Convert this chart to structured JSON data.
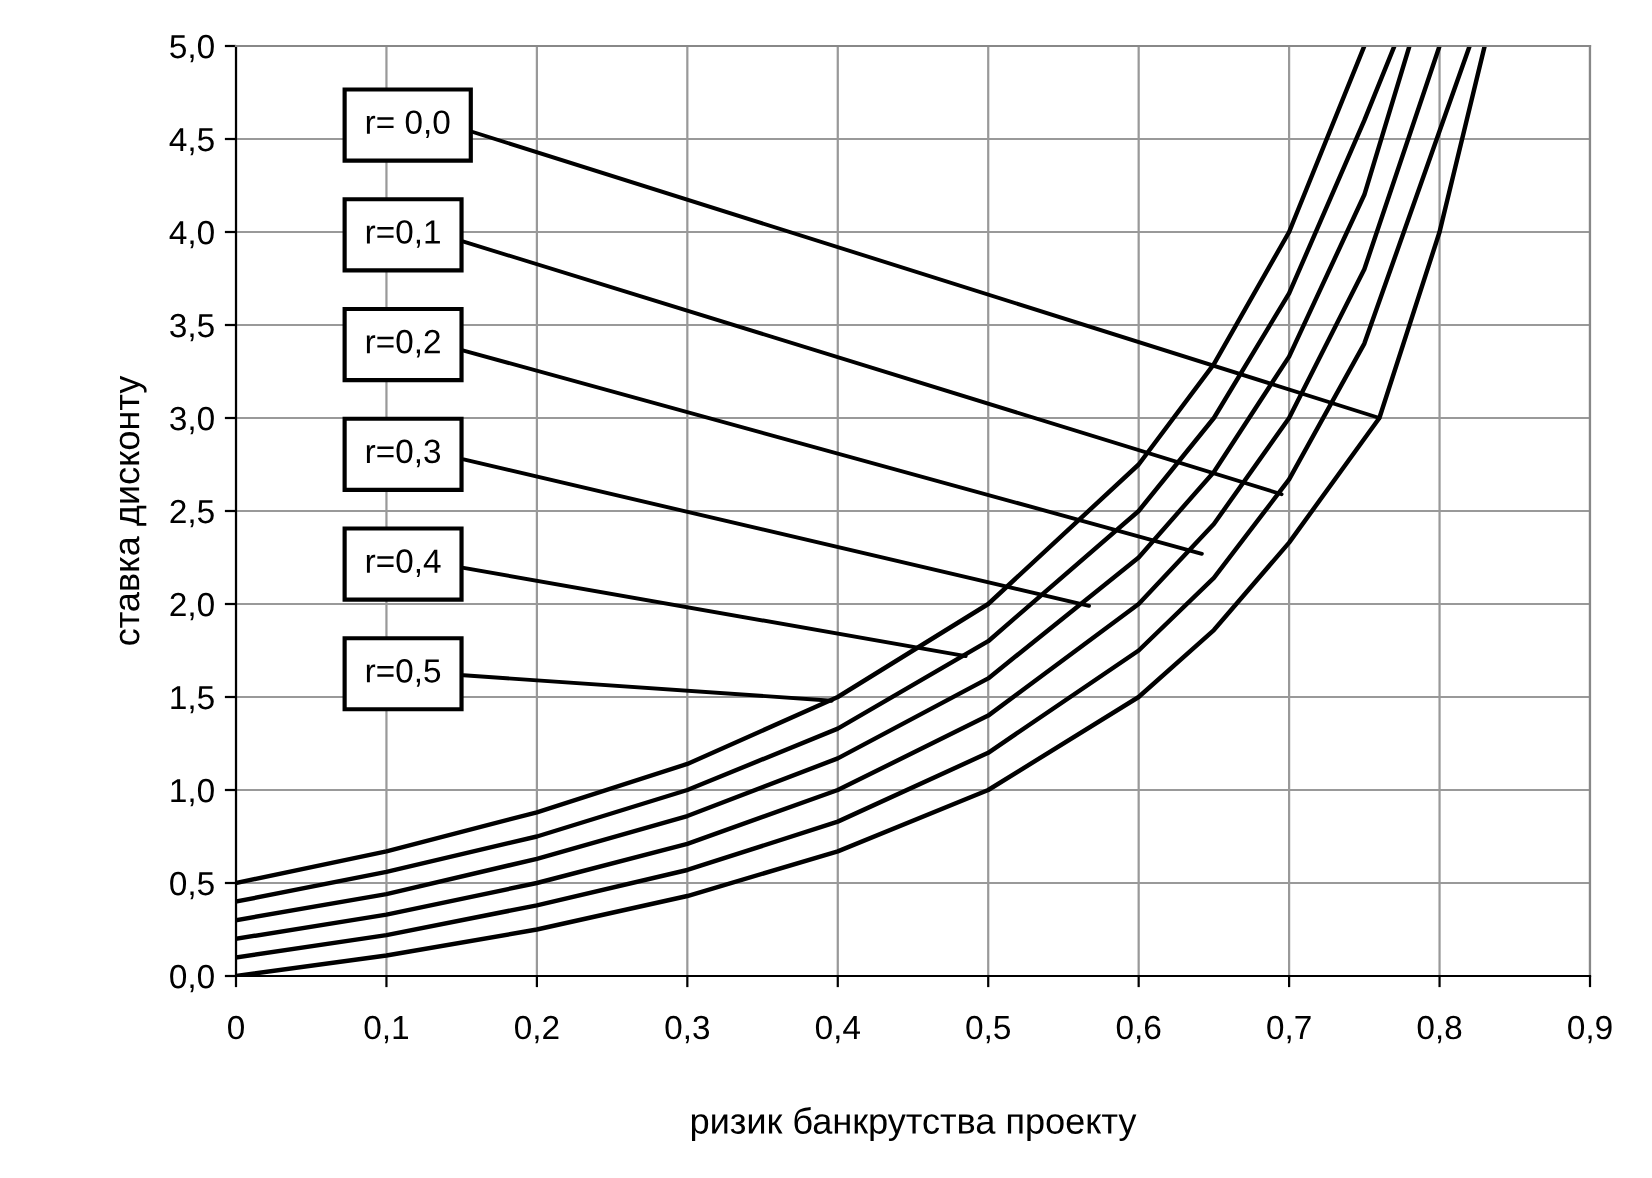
{
  "chart_data": {
    "type": "line",
    "xlabel": "ризик банкрутства проекту",
    "ylabel": "ставка дисконту",
    "series": [
      {
        "color": "#000000",
        "x": [
          0,
          0.1,
          0.2,
          0.3,
          0.4,
          0.5,
          0.6,
          0.65,
          0.7,
          0.76,
          0.8,
          0.83
        ],
        "values": [
          0,
          0.11,
          0.25,
          0.43,
          0.67,
          1.0,
          1.5,
          1.86,
          2.33,
          3.0,
          4.0,
          5.0
        ]
      },
      {
        "color": "#000000",
        "x": [
          0,
          0.1,
          0.2,
          0.3,
          0.4,
          0.5,
          0.6,
          0.65,
          0.7,
          0.75,
          0.82
        ],
        "values": [
          0.1,
          0.22,
          0.38,
          0.57,
          0.83,
          1.2,
          1.75,
          2.14,
          2.67,
          3.4,
          5.0
        ]
      },
      {
        "color": "#000000",
        "x": [
          0,
          0.1,
          0.2,
          0.3,
          0.4,
          0.5,
          0.6,
          0.65,
          0.7,
          0.75,
          0.8
        ],
        "values": [
          0.2,
          0.33,
          0.5,
          0.71,
          1.0,
          1.4,
          2.0,
          2.43,
          3.0,
          3.8,
          5.0
        ]
      },
      {
        "color": "#000000",
        "x": [
          0,
          0.1,
          0.2,
          0.3,
          0.4,
          0.5,
          0.6,
          0.65,
          0.7,
          0.75,
          0.78
        ],
        "values": [
          0.3,
          0.44,
          0.63,
          0.86,
          1.17,
          1.6,
          2.25,
          2.71,
          3.33,
          4.2,
          5.0
        ]
      },
      {
        "color": "#000000",
        "x": [
          0,
          0.1,
          0.2,
          0.3,
          0.4,
          0.5,
          0.6,
          0.65,
          0.7,
          0.75,
          0.77
        ],
        "values": [
          0.4,
          0.56,
          0.75,
          1.0,
          1.33,
          1.8,
          2.5,
          3.0,
          3.67,
          4.6,
          5.0
        ]
      },
      {
        "color": "#000000",
        "x": [
          0,
          0.1,
          0.2,
          0.3,
          0.4,
          0.5,
          0.6,
          0.65,
          0.7,
          0.75
        ],
        "values": [
          0.5,
          0.67,
          0.88,
          1.14,
          1.5,
          2.0,
          2.75,
          3.29,
          4.0,
          5.0
        ]
      }
    ],
    "annotations": [
      {
        "text": "r= 0,0",
        "x": 0.76,
        "y": 3.0
      },
      {
        "text": "r=0,1",
        "x": 0.695,
        "y": 2.59
      },
      {
        "text": "r=0,2",
        "x": 0.642,
        "y": 2.27
      },
      {
        "text": "r=0,3",
        "x": 0.567,
        "y": 1.99
      },
      {
        "text": "r=0,4",
        "x": 0.485,
        "y": 1.72
      },
      {
        "text": "r=0,5",
        "x": 0.396,
        "y": 1.48
      }
    ],
    "xlim": [
      0,
      0.9
    ],
    "ylim": [
      0,
      5.0
    ],
    "xticks": [
      0,
      {
        "value": 0.1,
        "label": "0,1"
      },
      {
        "value": 0.2,
        "label": "0,2"
      },
      {
        "value": 0.3,
        "label": "0,3"
      },
      {
        "value": 0.4,
        "label": "0,4"
      },
      {
        "value": 0.5,
        "label": "0,5"
      },
      {
        "value": 0.6,
        "label": "0,6"
      },
      {
        "value": 0.7,
        "label": "0,7"
      },
      {
        "value": 0.8,
        "label": "0,8"
      },
      {
        "value": 0.9,
        "label": "0,9"
      }
    ],
    "yticks": [
      {
        "value": 0,
        "label": "0,0"
      },
      {
        "value": 0.5,
        "label": "0,5"
      },
      {
        "value": 1.0,
        "label": "1,0"
      },
      {
        "value": 1.5,
        "label": "1,5"
      },
      {
        "value": 2.0,
        "label": "2,0"
      },
      {
        "value": 2.5,
        "label": "2,5"
      },
      {
        "value": 3.0,
        "label": "3,0"
      },
      {
        "value": 3.5,
        "label": "3,5"
      },
      {
        "value": 4.0,
        "label": "4,0"
      },
      {
        "value": 4.5,
        "label": "4,5"
      },
      {
        "value": 5.0,
        "label": "5,0"
      }
    ],
    "grid": true,
    "legend": false,
    "line_style": "solid",
    "marker": "none"
  }
}
